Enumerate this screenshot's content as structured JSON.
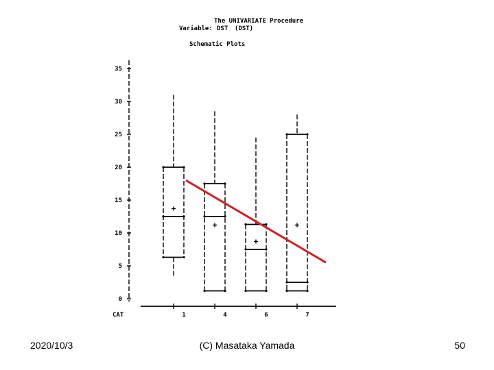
{
  "header": {
    "procedure": "The UNIVARIATE Procedure",
    "variable_label": "Variable:",
    "variable_name": "DST",
    "variable_paren": "(DST)",
    "plot_title": "Schematic Plots"
  },
  "chart_data": {
    "type": "boxplot",
    "title": "Schematic Plots",
    "ylabel": "",
    "xlabel": "CAT",
    "ylim": [
      0,
      35
    ],
    "yticks": [
      "0",
      "5",
      "10",
      "15",
      "20",
      "25",
      "30",
      "35"
    ],
    "categories": [
      "1",
      "4",
      "6",
      "7"
    ],
    "boxes": [
      {
        "category": "1",
        "whisker_low": 3.5,
        "q1": 6.3,
        "median": 12.5,
        "mean": 13.7,
        "q3": 20.0,
        "whisker_high": 31.0
      },
      {
        "category": "4",
        "whisker_low": 1.2,
        "q1": 1.2,
        "median": 12.5,
        "mean": 11.2,
        "q3": 17.5,
        "whisker_high": 28.5
      },
      {
        "category": "6",
        "whisker_low": 1.2,
        "q1": 1.2,
        "median": 7.5,
        "mean": 8.7,
        "q3": 11.3,
        "whisker_high": 24.5
      },
      {
        "category": "7",
        "whisker_low": 1.2,
        "q1": 1.2,
        "median": 2.5,
        "mean": 11.2,
        "q3": 25.0,
        "whisker_high": 28.0
      }
    ],
    "trend_line": {
      "color": "#cc2222",
      "x_start": 0.3,
      "y_start": 18.0,
      "x_end": 3.7,
      "y_end": 5.5
    },
    "grid": false,
    "legend": "none"
  },
  "footer": {
    "date": "2020/10/3",
    "center": "(C) Masataka Yamada",
    "page": "50"
  }
}
